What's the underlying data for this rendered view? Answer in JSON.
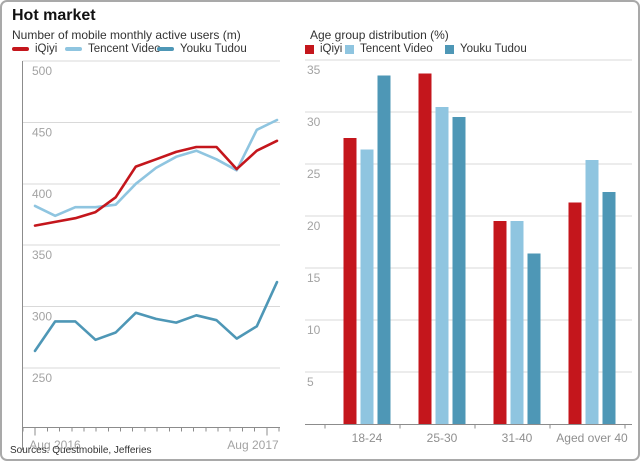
{
  "title": "Hot market",
  "source_note": "Sources: Questmobile, Jefferies",
  "colors": {
    "iqiyi_red": "#c4161c",
    "tencent_light_blue": "#8fc5e0",
    "youku_teal_blue": "#4e97b6",
    "gridline": "#d9d9d9",
    "axis": "#8c8c8c",
    "tick_label_gray": "#a3a3a3",
    "category_label_gray": "#8f8f8f"
  },
  "chart_data": [
    {
      "type": "line",
      "title": "Number of mobile monthly active users (m)",
      "legend_position": "top",
      "grid": true,
      "yticks": [
        500,
        450,
        400,
        350,
        300,
        250
      ],
      "ylim": [
        250,
        500
      ],
      "x_start_label": "Aug 2016",
      "x_end_label": "Aug 2017",
      "x_points": 13,
      "series": [
        {
          "name": "iQiyi",
          "color": "#c4161c",
          "values": [
            366,
            369,
            372,
            377,
            389,
            414,
            420,
            426,
            430,
            430,
            412,
            427,
            435
          ]
        },
        {
          "name": "Tencent Video",
          "color": "#8fc5e0",
          "values": [
            382,
            374,
            381,
            381,
            383,
            400,
            413,
            422,
            427,
            420,
            411,
            444,
            452
          ]
        },
        {
          "name": "Youku Tudou",
          "color": "#4e97b6",
          "values": [
            264,
            288,
            288,
            273,
            279,
            295,
            290,
            287,
            293,
            289,
            274,
            284,
            320
          ]
        }
      ]
    },
    {
      "type": "bar",
      "title": "Age group distribution (%)",
      "legend_position": "top",
      "grid": true,
      "yticks": [
        35,
        30,
        25,
        20,
        15,
        10,
        5
      ],
      "ylim": [
        0,
        35
      ],
      "categories": [
        "18-24",
        "25-30",
        "31-40",
        "Aged over 40"
      ],
      "series": [
        {
          "name": "iQiyi",
          "color": "#c4161c",
          "values": [
            27.5,
            33.7,
            19.5,
            21.3
          ]
        },
        {
          "name": "Tencent Video",
          "color": "#8fc5e0",
          "values": [
            26.4,
            30.5,
            19.5,
            25.4
          ]
        },
        {
          "name": "Youku Tudou",
          "color": "#4e97b6",
          "values": [
            33.5,
            29.5,
            16.4,
            22.3
          ]
        }
      ]
    }
  ]
}
